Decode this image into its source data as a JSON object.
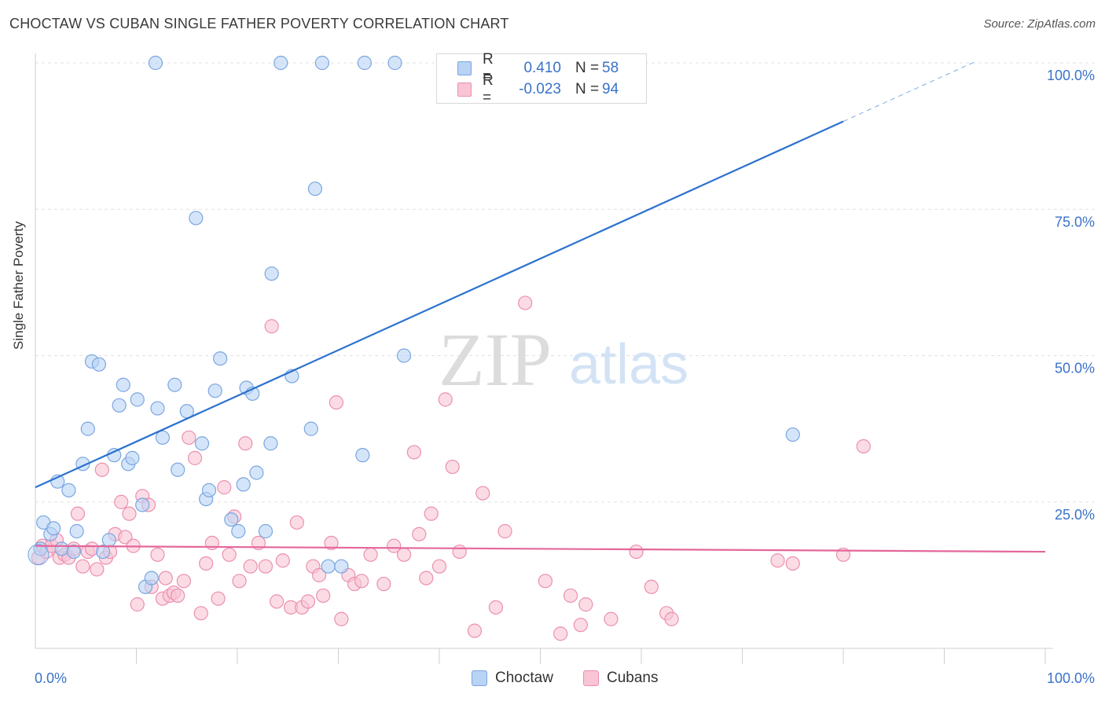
{
  "title": "CHOCTAW VS CUBAN SINGLE FATHER POVERTY CORRELATION CHART",
  "source": "Source: ZipAtlas.com",
  "watermark": {
    "zip": "ZIP",
    "atlas": "atlas"
  },
  "legend": {
    "rows": [
      {
        "r_label": "R =",
        "r_value": "0.410",
        "n_label": "N =",
        "n_value": "58"
      },
      {
        "r_label": "R =",
        "r_value": "-0.023",
        "n_label": "N =",
        "n_value": "94"
      }
    ]
  },
  "colors": {
    "choctaw_fill": "#b9d3f5",
    "choctaw_stroke": "#7aa6e0",
    "choctaw_line": "#2b72cf",
    "cubans_fill": "#f9c4d4",
    "cubans_stroke": "#ec8fae",
    "cubans_line": "#e4679a",
    "axis_text": "#3a72c8",
    "grid": "#e2e2e2"
  },
  "chart_data": {
    "type": "scatter",
    "title": "CHOCTAW VS CUBAN SINGLE FATHER POVERTY CORRELATION CHART",
    "xlabel": "",
    "ylabel": "Single Father Poverty",
    "xlim": [
      0,
      100
    ],
    "ylim": [
      0,
      100
    ],
    "x_tick_labels": [
      "0.0%",
      "100.0%"
    ],
    "y_tick_labels": [
      "25.0%",
      "50.0%",
      "75.0%",
      "100.0%"
    ],
    "y_ticks": [
      25,
      50,
      75,
      100
    ],
    "grid": true,
    "legend_position": "bottom",
    "series": [
      {
        "name": "Choctaw",
        "trend": {
          "x0": 0,
          "y0": 27.5,
          "x1": 80,
          "y1": 90,
          "dash_to_x": 93
        },
        "points": [
          [
            0.5,
            17
          ],
          [
            0.8,
            21.5
          ],
          [
            1.5,
            19.5
          ],
          [
            1.8,
            20.5
          ],
          [
            2.2,
            28.5
          ],
          [
            2.6,
            17
          ],
          [
            3.3,
            27
          ],
          [
            3.8,
            16.5
          ],
          [
            4.1,
            20
          ],
          [
            4.7,
            31.5
          ],
          [
            5.2,
            37.5
          ],
          [
            5.6,
            49
          ],
          [
            6.3,
            48.5
          ],
          [
            6.7,
            16.5
          ],
          [
            7.3,
            18.5
          ],
          [
            7.8,
            33
          ],
          [
            8.3,
            41.5
          ],
          [
            8.7,
            45
          ],
          [
            9.2,
            31.5
          ],
          [
            9.6,
            32.5
          ],
          [
            10.1,
            42.5
          ],
          [
            10.6,
            24.5
          ],
          [
            10.9,
            10.5
          ],
          [
            11.5,
            12
          ],
          [
            11.9,
            100
          ],
          [
            12.1,
            41
          ],
          [
            12.6,
            36
          ],
          [
            13.8,
            45
          ],
          [
            14.1,
            30.5
          ],
          [
            15.0,
            40.5
          ],
          [
            15.9,
            73.5
          ],
          [
            16.5,
            35
          ],
          [
            16.9,
            25.5
          ],
          [
            17.2,
            27
          ],
          [
            17.8,
            44
          ],
          [
            18.3,
            49.5
          ],
          [
            19.4,
            22
          ],
          [
            20.1,
            20
          ],
          [
            20.6,
            28
          ],
          [
            20.9,
            44.5
          ],
          [
            21.5,
            43.5
          ],
          [
            21.9,
            30
          ],
          [
            22.8,
            20
          ],
          [
            23.3,
            35
          ],
          [
            23.4,
            64
          ],
          [
            24.3,
            100
          ],
          [
            25.4,
            46.5
          ],
          [
            27.3,
            37.5
          ],
          [
            27.7,
            78.5
          ],
          [
            28.4,
            100
          ],
          [
            29.0,
            14
          ],
          [
            30.3,
            14
          ],
          [
            32.4,
            33
          ],
          [
            32.6,
            100
          ],
          [
            35.6,
            100
          ],
          [
            36.5,
            50
          ],
          [
            45.5,
            100
          ],
          [
            75.0,
            36.5
          ]
        ]
      },
      {
        "name": "Cubans",
        "trend": {
          "x0": 0,
          "y0": 17.5,
          "x1": 100,
          "y1": 16.5
        },
        "points": [
          [
            0.3,
            15.5
          ],
          [
            0.7,
            17.5
          ],
          [
            1.1,
            16.5
          ],
          [
            1.6,
            17.5
          ],
          [
            2.1,
            18.5
          ],
          [
            2.4,
            15.5
          ],
          [
            2.9,
            16
          ],
          [
            3.3,
            15.5
          ],
          [
            3.8,
            17
          ],
          [
            4.2,
            23
          ],
          [
            4.7,
            14
          ],
          [
            5.2,
            16.5
          ],
          [
            5.6,
            17
          ],
          [
            6.1,
            13.5
          ],
          [
            6.6,
            30.5
          ],
          [
            7.0,
            15.5
          ],
          [
            7.4,
            16.5
          ],
          [
            7.9,
            19.5
          ],
          [
            8.5,
            25
          ],
          [
            8.9,
            19
          ],
          [
            9.3,
            23
          ],
          [
            9.7,
            17.5
          ],
          [
            10.1,
            7.5
          ],
          [
            10.6,
            26
          ],
          [
            11.2,
            24.5
          ],
          [
            11.5,
            10.5
          ],
          [
            12.1,
            16
          ],
          [
            12.6,
            8.5
          ],
          [
            12.9,
            12
          ],
          [
            13.3,
            9
          ],
          [
            13.7,
            9.5
          ],
          [
            14.1,
            9
          ],
          [
            14.7,
            11.5
          ],
          [
            15.2,
            36
          ],
          [
            15.8,
            32.5
          ],
          [
            16.4,
            6
          ],
          [
            16.9,
            14.5
          ],
          [
            17.5,
            18
          ],
          [
            18.1,
            8.5
          ],
          [
            18.7,
            27.5
          ],
          [
            19.2,
            16
          ],
          [
            19.7,
            22.5
          ],
          [
            20.2,
            11.5
          ],
          [
            20.8,
            35
          ],
          [
            21.3,
            14
          ],
          [
            22.1,
            18
          ],
          [
            22.8,
            14
          ],
          [
            23.4,
            55
          ],
          [
            23.9,
            8
          ],
          [
            24.5,
            15
          ],
          [
            25.3,
            7
          ],
          [
            25.9,
            21.5
          ],
          [
            26.4,
            7
          ],
          [
            27.0,
            8
          ],
          [
            27.5,
            14
          ],
          [
            28.1,
            12.5
          ],
          [
            28.5,
            9
          ],
          [
            29.3,
            18
          ],
          [
            29.8,
            42
          ],
          [
            30.3,
            5
          ],
          [
            31.0,
            12.5
          ],
          [
            31.6,
            11
          ],
          [
            32.3,
            11.5
          ],
          [
            33.2,
            16
          ],
          [
            34.5,
            11
          ],
          [
            35.5,
            17.5
          ],
          [
            36.5,
            16
          ],
          [
            37.5,
            33.5
          ],
          [
            38.0,
            19.5
          ],
          [
            38.7,
            12
          ],
          [
            39.2,
            23
          ],
          [
            40.0,
            14
          ],
          [
            40.6,
            42.5
          ],
          [
            41.3,
            31
          ],
          [
            42.0,
            16.5
          ],
          [
            43.5,
            3
          ],
          [
            44.3,
            26.5
          ],
          [
            45.6,
            7
          ],
          [
            46.5,
            20
          ],
          [
            48.5,
            59
          ],
          [
            50.5,
            11.5
          ],
          [
            52.0,
            2.5
          ],
          [
            53.0,
            9
          ],
          [
            54.0,
            4
          ],
          [
            54.5,
            7.5
          ],
          [
            57.0,
            5
          ],
          [
            59.5,
            16.5
          ],
          [
            61.0,
            10.5
          ],
          [
            62.5,
            6
          ],
          [
            63.0,
            5
          ],
          [
            73.5,
            15
          ],
          [
            75.0,
            14.5
          ],
          [
            80.0,
            16
          ],
          [
            82.0,
            34.5
          ]
        ]
      }
    ]
  },
  "bottom_legend": {
    "items": [
      {
        "label": "Choctaw"
      },
      {
        "label": "Cubans"
      }
    ]
  }
}
